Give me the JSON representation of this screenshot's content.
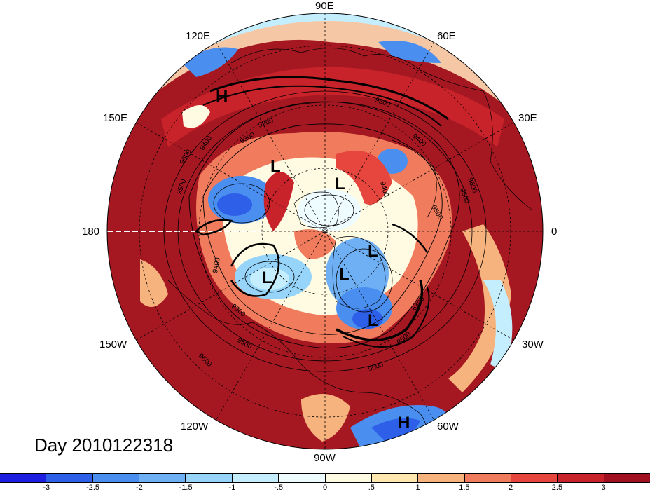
{
  "map": {
    "projection": "north-polar-stereographic",
    "longitude_labels": [
      "90E",
      "60E",
      "30E",
      "0",
      "30W",
      "60W",
      "90W",
      "120W",
      "150W",
      "180",
      "150E",
      "120E"
    ],
    "contour_labels": [
      "9600",
      "9500",
      "9400",
      "9300",
      "9200",
      "9400",
      "9500",
      "9600",
      "9500",
      "9400",
      "9300",
      "9400",
      "9500",
      "9600",
      "9600",
      "9500",
      "9400",
      "9600"
    ],
    "pressure_centers": [
      "H",
      "L",
      "L",
      "L",
      "L",
      "L",
      "L",
      "H"
    ]
  },
  "date_label": "Day 2010122318",
  "colorbar": {
    "colors": [
      "#1e1ee0",
      "#2d5fe8",
      "#4a8ff0",
      "#6fb0f5",
      "#96d4fa",
      "#c4eefd",
      "#eefcff",
      "#fffbe3",
      "#ffe7b0",
      "#f7b37e",
      "#f07c5d",
      "#e6463d",
      "#c8222a",
      "#a01020"
    ],
    "tick_labels": [
      "-3",
      "-2.5",
      "-2",
      "-1.5",
      "-1",
      "-.5",
      "0",
      ".5",
      "1",
      "1.5",
      "2",
      "2.5",
      "3"
    ]
  }
}
